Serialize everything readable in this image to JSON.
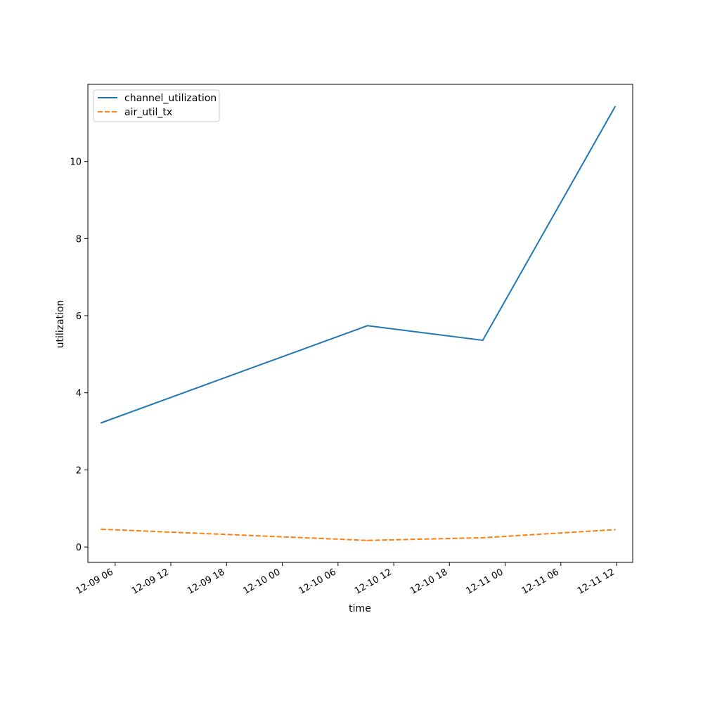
{
  "chart_data": {
    "type": "line",
    "xlabel": "time",
    "ylabel": "utilization",
    "x_ticks": [
      "12-09 06",
      "12-09 12",
      "12-09 18",
      "12-10 00",
      "12-10 06",
      "12-10 12",
      "12-10 18",
      "12-11 00",
      "12-11 06",
      "12-11 12"
    ],
    "y_ticks": [
      "0",
      "2",
      "4",
      "6",
      "8",
      "10"
    ],
    "xlim": [
      "2023-12-09 03:04",
      "2023-12-11 13:44"
    ],
    "ylim": [
      -0.4,
      12.0
    ],
    "grid": false,
    "legend_position": "top-left",
    "series": [
      {
        "name": "channel_utilization",
        "color": "#1f77b4",
        "dash": "solid",
        "x": [
          "2023-12-09 04:30",
          "2023-12-10 09:10",
          "2023-12-10 21:35",
          "2023-12-11 11:50"
        ],
        "values": [
          3.22,
          5.74,
          5.36,
          11.42
        ]
      },
      {
        "name": "air_util_tx",
        "color": "#ff7f0e",
        "dash": "dashed",
        "x": [
          "2023-12-09 04:30",
          "2023-12-10 09:10",
          "2023-12-10 21:35",
          "2023-12-11 11:50"
        ],
        "values": [
          0.46,
          0.17,
          0.24,
          0.45
        ]
      }
    ]
  }
}
